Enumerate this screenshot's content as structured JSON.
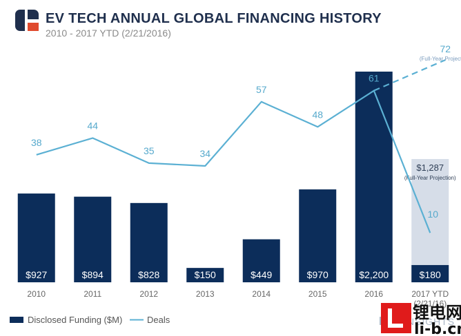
{
  "header": {
    "title": "EV TECH ANNUAL GLOBAL FINANCING HISTORY",
    "subtitle": "2010 - 2017 YTD (2/21/2016)"
  },
  "legend": {
    "funding": "Disclosed Funding ($M)",
    "deals": "Deals"
  },
  "brand": {
    "name": "INSIGHTS"
  },
  "watermark": {
    "cn": "锂电网",
    "url": "li-b.cn"
  },
  "colors": {
    "bar": "#0c2d5a",
    "line": "#5bb0d3",
    "projection_bar": "#d6dde8",
    "title": "#1f2f4d",
    "logo_red": "#e04a2e"
  },
  "chart_data": {
    "type": "bar",
    "categories": [
      "2010",
      "2011",
      "2012",
      "2013",
      "2014",
      "2015",
      "2016",
      "2017 YTD (2/21/16)"
    ],
    "series": [
      {
        "name": "Disclosed Funding ($M)",
        "type": "bar",
        "values": [
          927,
          894,
          828,
          150,
          449,
          970,
          2200,
          180
        ],
        "labels": [
          "$927",
          "$894",
          "$828",
          "$150",
          "$449",
          "$970",
          "$2,200",
          "$180"
        ]
      },
      {
        "name": "Deals",
        "type": "line",
        "values": [
          38,
          44,
          35,
          34,
          57,
          48,
          61,
          10
        ]
      }
    ],
    "projections": {
      "funding": {
        "value": 1287,
        "label": "$1,287",
        "note": "(Full-Year Projection)"
      },
      "deals": {
        "value": 72,
        "note": "(Full-Year Projection)"
      }
    },
    "legend_position": "bottom-left",
    "grid": false
  }
}
